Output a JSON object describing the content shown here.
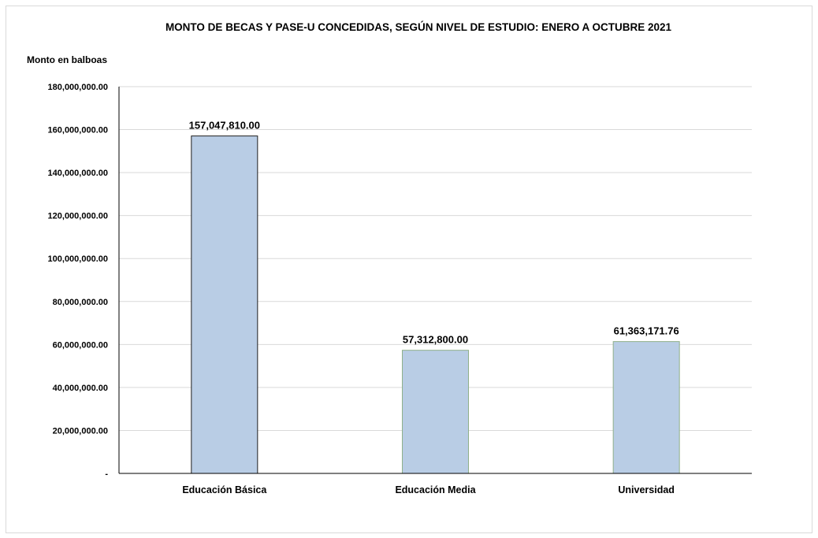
{
  "chart_data": {
    "type": "bar",
    "title": "MONTO DE BECAS Y PASE-U CONCEDIDAS, SEGÚN NIVEL DE ESTUDIO: ENERO A OCTUBRE 2021",
    "ylabel": "Monto en balboas",
    "xlabel": "",
    "categories": [
      "Educación Básica",
      "Educación Media",
      "Universidad"
    ],
    "values": [
      157047810.0,
      57312800.0,
      61363171.76
    ],
    "data_labels": [
      "157,047,810.00",
      "57,312,800.00",
      "61,363,171.76"
    ],
    "ylim": [
      0,
      180000000
    ],
    "yticks": [
      0,
      20000000,
      40000000,
      60000000,
      80000000,
      100000000,
      120000000,
      140000000,
      160000000,
      180000000
    ],
    "ytick_labels": [
      "-",
      "20,000,000.00",
      "40,000,000.00",
      "60,000,000.00",
      "80,000,000.00",
      "100,000,000.00",
      "120,000,000.00",
      "140,000,000.00",
      "160,000,000.00",
      "180,000,000.00"
    ],
    "grid": true,
    "legend": "none",
    "colors": {
      "bar_fill": "#b9cde5",
      "bar_stroke_first": "#1f1f1f",
      "bar_stroke_other": "#8fb08a",
      "grid": "#d9d9d9",
      "axis": "#000000"
    }
  }
}
